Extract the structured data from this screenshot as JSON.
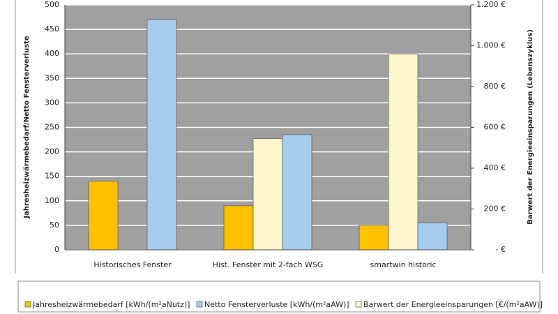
{
  "chart_data": {
    "type": "bar",
    "y_label": "Jahresheizwärmebedarf/Netto Fensterverluste",
    "y2_label": "Barwert der Energieeinsparungen (Lebenszyklus)",
    "categories": [
      "Historisches Fenster",
      "Hist. Fenster mit 2-fach WSG",
      "smartwin historic"
    ],
    "series": [
      {
        "name": "Jahresheizwärmebedarf [kWh/(m²aNutz)]",
        "color": "#ffc000",
        "values": [
          140,
          90,
          50
        ]
      },
      {
        "name": "Barwert der Energieeinsparungen [€/(m²aAW)]",
        "color": "#fff5cc",
        "values": [
          null,
          545,
          960
        ],
        "axis": "y2"
      },
      {
        "name": "Netto Fensterverluste [kWh/(m²aAW)]",
        "color": "#a6cdee",
        "values": [
          470,
          235,
          55
        ]
      }
    ],
    "ylim": [
      0,
      500
    ],
    "yticks": [
      0,
      50,
      100,
      150,
      200,
      250,
      300,
      350,
      400,
      450,
      500
    ],
    "y2lim": [
      0,
      1200
    ],
    "y2ticks": [
      {
        "value": 0,
        "label": "- €"
      },
      {
        "value": 200,
        "label": "200 €"
      },
      {
        "value": 400,
        "label": "400 €"
      },
      {
        "value": 600,
        "label": "600 €"
      },
      {
        "value": 800,
        "label": "800 €"
      },
      {
        "value": 1000,
        "label": "1.000 €"
      },
      {
        "value": 1200,
        "label": "1.200 €"
      }
    ],
    "grid": true
  }
}
